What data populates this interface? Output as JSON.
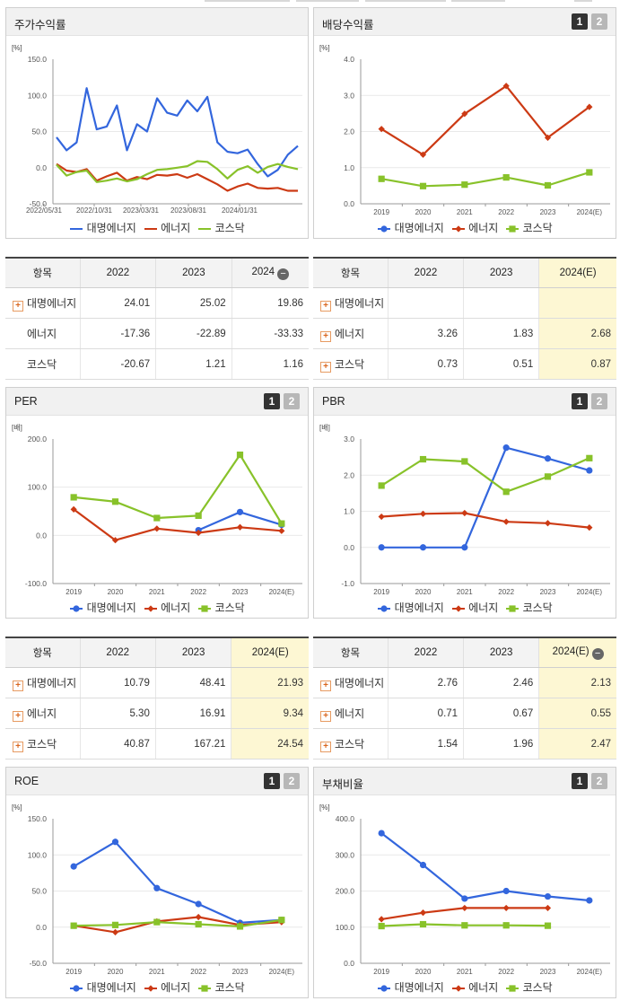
{
  "series_names": [
    "대명에너지",
    "에너지",
    "코스닥"
  ],
  "colors": {
    "s0": "#3366dd",
    "s1": "#cc3a14",
    "s2": "#88c22a"
  },
  "chart_data": [
    {
      "id": "stock",
      "type": "line",
      "title": "주가수익률",
      "unit": "[%]",
      "badges": [],
      "ylim": [
        -50,
        150
      ],
      "yticks": [
        "150.0",
        "100.0",
        "50.0",
        "0.0",
        "-50.0"
      ],
      "xlabels": [
        "2022/05/31",
        "2022/10/31",
        "2023/03/31",
        "2023/08/31",
        "2024/01/31"
      ],
      "series": [
        {
          "name": "대명에너지",
          "values": [
            42,
            24,
            35,
            110,
            53,
            57,
            86,
            24,
            60,
            50,
            96,
            76,
            72,
            93,
            78,
            98,
            35,
            22,
            20,
            25,
            5,
            -12,
            -3,
            18,
            30
          ]
        },
        {
          "name": "에너지",
          "values": [
            5,
            -4,
            -6,
            -2,
            -18,
            -12,
            -7,
            -18,
            -13,
            -16,
            -10,
            -11,
            -9,
            -14,
            -9,
            -16,
            -23,
            -32,
            -26,
            -22,
            -28,
            -29,
            -28,
            -32,
            -32
          ]
        },
        {
          "name": "코스닥",
          "values": [
            4,
            -11,
            -6,
            -4,
            -20,
            -18,
            -15,
            -19,
            -16,
            -9,
            -3,
            -2,
            0,
            2,
            9,
            8,
            -2,
            -15,
            -3,
            2,
            -7,
            1,
            5,
            1,
            -2
          ]
        }
      ]
    },
    {
      "id": "dividend",
      "type": "line",
      "title": "배당수익률",
      "unit": "[%]",
      "badges": [
        "1",
        "2"
      ],
      "ylim": [
        0,
        4
      ],
      "yticks": [
        "4.0",
        "3.0",
        "2.0",
        "1.0",
        "0.0"
      ],
      "xlabels": [
        "2019",
        "2020",
        "2021",
        "2022",
        "2023",
        "2024(E)"
      ],
      "series": [
        {
          "name": "대명에너지",
          "values": [
            null,
            null,
            null,
            null,
            null,
            null
          ]
        },
        {
          "name": "에너지",
          "values": [
            2.07,
            1.36,
            2.49,
            3.26,
            1.83,
            2.68
          ]
        },
        {
          "name": "코스닥",
          "values": [
            0.69,
            0.49,
            0.53,
            0.73,
            0.51,
            0.87
          ]
        }
      ]
    },
    {
      "id": "per",
      "type": "line",
      "title": "PER",
      "unit": "[배]",
      "badges": [
        "1",
        "2"
      ],
      "ylim": [
        -100,
        200
      ],
      "yticks": [
        "200.0",
        "100.0",
        "0.0",
        "-100.0"
      ],
      "xlabels": [
        "2019",
        "2020",
        "2021",
        "2022",
        "2023",
        "2024(E)"
      ],
      "series": [
        {
          "name": "대명에너지",
          "values": [
            null,
            null,
            null,
            10.79,
            48.41,
            21.93
          ]
        },
        {
          "name": "에너지",
          "values": [
            54,
            -10,
            14,
            5.3,
            16.91,
            9.34
          ]
        },
        {
          "name": "코스닥",
          "values": [
            79,
            70,
            36,
            40.87,
            167.21,
            24.54
          ]
        }
      ]
    },
    {
      "id": "pbr",
      "type": "line",
      "title": "PBR",
      "unit": "[배]",
      "badges": [
        "1",
        "2"
      ],
      "ylim": [
        -1,
        3
      ],
      "yticks": [
        "3.0",
        "2.0",
        "1.0",
        "0.0",
        "-1.0"
      ],
      "xlabels": [
        "2019",
        "2020",
        "2021",
        "2022",
        "2023",
        "2024(E)"
      ],
      "series": [
        {
          "name": "대명에너지",
          "values": [
            0,
            0,
            0,
            2.76,
            2.46,
            2.13
          ]
        },
        {
          "name": "에너지",
          "values": [
            0.85,
            0.93,
            0.95,
            0.71,
            0.67,
            0.55
          ]
        },
        {
          "name": "코스닥",
          "values": [
            1.71,
            2.44,
            2.38,
            1.54,
            1.96,
            2.47
          ]
        }
      ]
    },
    {
      "id": "roe",
      "type": "line",
      "title": "ROE",
      "unit": "[%]",
      "badges": [
        "1",
        "2"
      ],
      "ylim": [
        -50,
        150
      ],
      "yticks": [
        "150.0",
        "100.0",
        "50.0",
        "0.0",
        "-50.0"
      ],
      "xlabels": [
        "2019",
        "2020",
        "2021",
        "2022",
        "2023",
        "2024(E)"
      ],
      "series": [
        {
          "name": "대명에너지",
          "values": [
            84,
            118,
            54,
            32,
            6,
            10
          ]
        },
        {
          "name": "에너지",
          "values": [
            2,
            -7,
            8,
            14,
            3,
            7
          ]
        },
        {
          "name": "코스닥",
          "values": [
            2,
            3,
            7,
            4,
            1,
            10
          ]
        }
      ]
    },
    {
      "id": "debt",
      "type": "line",
      "title": "부채비율",
      "unit": "[%]",
      "badges": [
        "1",
        "2"
      ],
      "ylim": [
        0,
        400
      ],
      "yticks": [
        "400.0",
        "300.0",
        "200.0",
        "100.0",
        "0.0"
      ],
      "xlabels": [
        "2019",
        "2020",
        "2021",
        "2022",
        "2023",
        "2024(E)"
      ],
      "series": [
        {
          "name": "대명에너지",
          "values": [
            360,
            272,
            179,
            200,
            185,
            174
          ]
        },
        {
          "name": "에너지",
          "values": [
            122,
            140,
            153,
            153,
            153,
            null
          ]
        },
        {
          "name": "코스닥",
          "values": [
            103,
            108,
            105,
            105,
            104,
            null
          ]
        }
      ]
    }
  ],
  "tables": {
    "stock": {
      "head": [
        "항목",
        "2022",
        "2023",
        "2024"
      ],
      "rows": [
        {
          "label": "대명에너지",
          "plus": true,
          "vals": [
            "24.01",
            "25.02",
            "19.86"
          ]
        },
        {
          "label": "에너지",
          "plus": false,
          "vals": [
            "-17.36",
            "-22.89",
            "-33.33"
          ]
        },
        {
          "label": "코스닥",
          "plus": false,
          "vals": [
            "-20.67",
            "1.21",
            "1.16"
          ]
        }
      ]
    },
    "dividend": {
      "head": [
        "항목",
        "2022",
        "2023",
        "2024(E)"
      ],
      "rows": [
        {
          "label": "대명에너지",
          "plus": true,
          "vals": [
            "",
            "",
            ""
          ]
        },
        {
          "label": "에너지",
          "plus": true,
          "vals": [
            "3.26",
            "1.83",
            "2.68"
          ]
        },
        {
          "label": "코스닥",
          "plus": true,
          "vals": [
            "0.73",
            "0.51",
            "0.87"
          ]
        }
      ]
    },
    "per": {
      "head": [
        "항목",
        "2022",
        "2023",
        "2024(E)"
      ],
      "rows": [
        {
          "label": "대명에너지",
          "plus": true,
          "vals": [
            "10.79",
            "48.41",
            "21.93"
          ]
        },
        {
          "label": "에너지",
          "plus": true,
          "vals": [
            "5.30",
            "16.91",
            "9.34"
          ]
        },
        {
          "label": "코스닥",
          "plus": true,
          "vals": [
            "40.87",
            "167.21",
            "24.54"
          ]
        }
      ]
    },
    "pbr": {
      "head": [
        "항목",
        "2022",
        "2023",
        "2024(E)"
      ],
      "rows": [
        {
          "label": "대명에너지",
          "plus": true,
          "vals": [
            "2.76",
            "2.46",
            "2.13"
          ]
        },
        {
          "label": "에너지",
          "plus": true,
          "vals": [
            "0.71",
            "0.67",
            "0.55"
          ]
        },
        {
          "label": "코스닥",
          "plus": true,
          "vals": [
            "1.54",
            "1.96",
            "2.47"
          ]
        }
      ]
    }
  }
}
